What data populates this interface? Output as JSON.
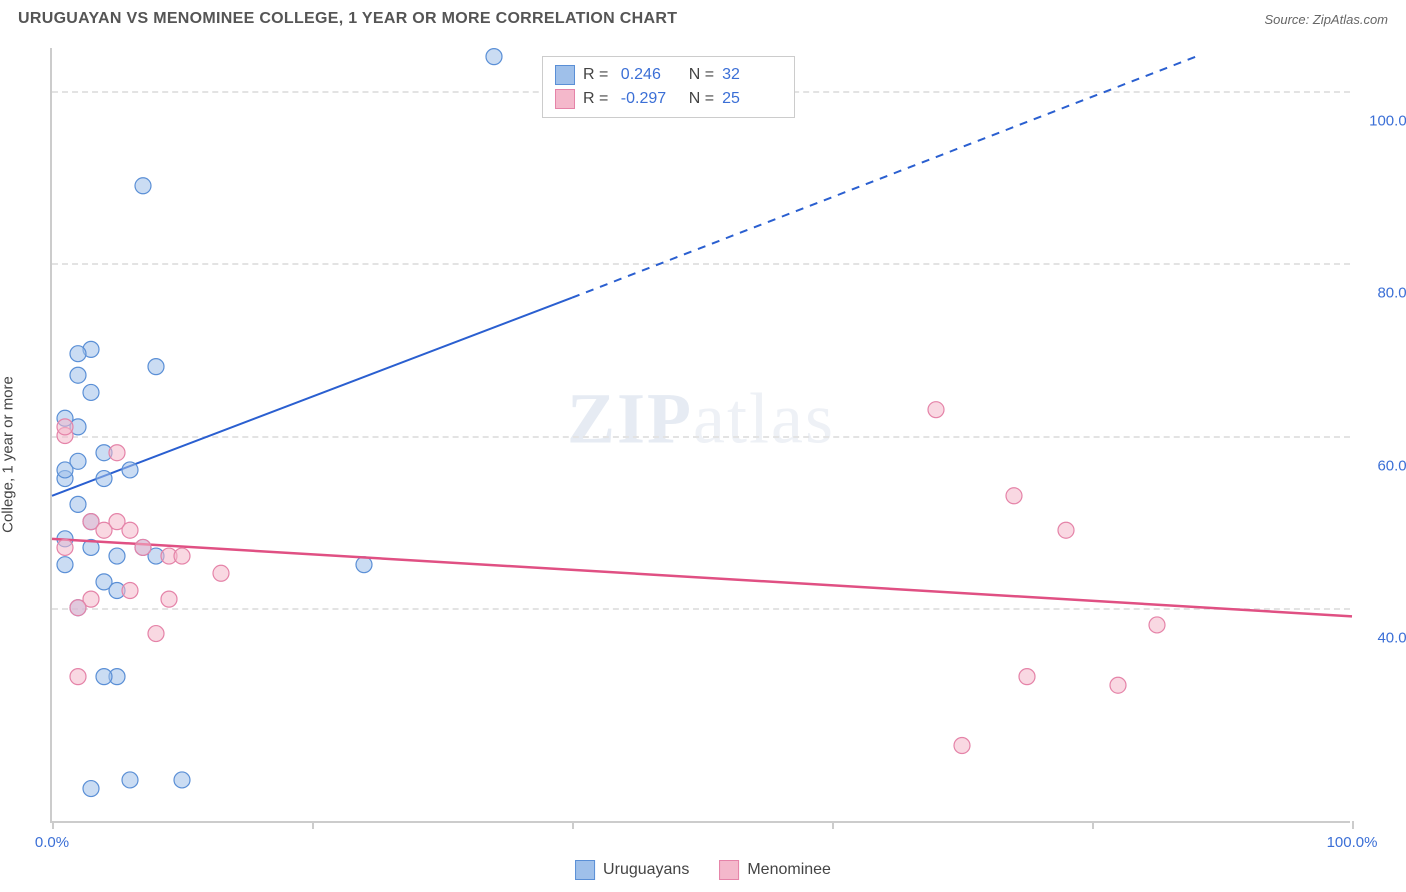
{
  "header": {
    "title": "URUGUAYAN VS MENOMINEE COLLEGE, 1 YEAR OR MORE CORRELATION CHART",
    "source": "Source: ZipAtlas.com"
  },
  "chart": {
    "type": "scatter",
    "ylabel": "College, 1 year or more",
    "watermark": "ZIPatlas",
    "xlim": [
      0,
      100
    ],
    "ylim": [
      15,
      105
    ],
    "background_color": "#ffffff",
    "grid_color": "#e3e3e3",
    "axis_color": "#cccccc",
    "y_ticks": [
      40,
      60,
      80,
      100
    ],
    "y_tick_labels": [
      "40.0%",
      "60.0%",
      "80.0%",
      "100.0%"
    ],
    "x_tick_positions": [
      0,
      20,
      40,
      60,
      80,
      100
    ],
    "x_tick_labels_shown": {
      "0": "0.0%",
      "100": "100.0%"
    },
    "tick_label_color": "#3b6fd6",
    "label_fontsize": 15,
    "marker_radius": 8,
    "marker_opacity": 0.55,
    "series": [
      {
        "name": "Uruguayans",
        "color_fill": "#9fc0ea",
        "color_stroke": "#5a8fd6",
        "r_value": "0.246",
        "n_value": "32",
        "trend": {
          "x1": 0,
          "y1": 53,
          "x2": 40,
          "y2": 76,
          "x_extend": 88,
          "y_extend": 104,
          "color": "#2a5fd0",
          "width": 2,
          "dash_after_solid": true
        },
        "points": [
          {
            "x": 1,
            "y": 55
          },
          {
            "x": 1,
            "y": 56
          },
          {
            "x": 2,
            "y": 57
          },
          {
            "x": 2,
            "y": 61
          },
          {
            "x": 1,
            "y": 62
          },
          {
            "x": 3,
            "y": 65
          },
          {
            "x": 2,
            "y": 67
          },
          {
            "x": 3,
            "y": 70
          },
          {
            "x": 2,
            "y": 69.5
          },
          {
            "x": 8,
            "y": 68
          },
          {
            "x": 4,
            "y": 55
          },
          {
            "x": 6,
            "y": 56
          },
          {
            "x": 3,
            "y": 50
          },
          {
            "x": 3,
            "y": 47
          },
          {
            "x": 5,
            "y": 46
          },
          {
            "x": 7,
            "y": 47
          },
          {
            "x": 8,
            "y": 46
          },
          {
            "x": 4,
            "y": 43
          },
          {
            "x": 24,
            "y": 45
          },
          {
            "x": 2,
            "y": 40
          },
          {
            "x": 1,
            "y": 45
          },
          {
            "x": 5,
            "y": 32
          },
          {
            "x": 4,
            "y": 32
          },
          {
            "x": 34,
            "y": 104
          },
          {
            "x": 7,
            "y": 89
          },
          {
            "x": 6,
            "y": 20
          },
          {
            "x": 10,
            "y": 20
          },
          {
            "x": 3,
            "y": 19
          },
          {
            "x": 5,
            "y": 42
          },
          {
            "x": 1,
            "y": 48
          },
          {
            "x": 2,
            "y": 52
          },
          {
            "x": 4,
            "y": 58
          }
        ]
      },
      {
        "name": "Menominee",
        "color_fill": "#f4b8cb",
        "color_stroke": "#e583a8",
        "r_value": "-0.297",
        "n_value": "25",
        "trend": {
          "x1": 0,
          "y1": 48,
          "x2": 100,
          "y2": 39,
          "color": "#e05083",
          "width": 2.5,
          "dash_after_solid": false
        },
        "points": [
          {
            "x": 1,
            "y": 47
          },
          {
            "x": 1,
            "y": 60
          },
          {
            "x": 1,
            "y": 61
          },
          {
            "x": 5,
            "y": 58
          },
          {
            "x": 3,
            "y": 50
          },
          {
            "x": 4,
            "y": 49
          },
          {
            "x": 5,
            "y": 50
          },
          {
            "x": 6,
            "y": 49
          },
          {
            "x": 7,
            "y": 47
          },
          {
            "x": 9,
            "y": 46
          },
          {
            "x": 10,
            "y": 46
          },
          {
            "x": 13,
            "y": 44
          },
          {
            "x": 3,
            "y": 41
          },
          {
            "x": 2,
            "y": 40
          },
          {
            "x": 6,
            "y": 42
          },
          {
            "x": 9,
            "y": 41
          },
          {
            "x": 8,
            "y": 37
          },
          {
            "x": 2,
            "y": 32
          },
          {
            "x": 68,
            "y": 63
          },
          {
            "x": 74,
            "y": 53
          },
          {
            "x": 78,
            "y": 49
          },
          {
            "x": 75,
            "y": 32
          },
          {
            "x": 82,
            "y": 31
          },
          {
            "x": 85,
            "y": 38
          },
          {
            "x": 70,
            "y": 24
          }
        ]
      }
    ]
  },
  "bottom_legend": [
    {
      "label": "Uruguayans",
      "fill": "#9fc0ea",
      "stroke": "#5a8fd6"
    },
    {
      "label": "Menominee",
      "fill": "#f4b8cb",
      "stroke": "#e583a8"
    }
  ]
}
